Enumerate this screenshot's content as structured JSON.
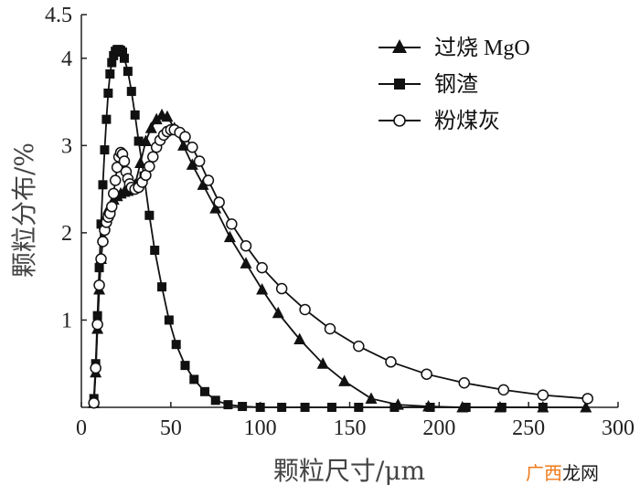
{
  "chart_data": {
    "type": "line",
    "title": "",
    "xlabel": "颗粒尺寸/μm",
    "ylabel": "颗粒分布/%",
    "xlim": [
      0,
      300
    ],
    "ylim": [
      0,
      4.5
    ],
    "xticks": [
      "0",
      "50",
      "100",
      "150",
      "200",
      "250",
      "300"
    ],
    "yticks": [
      "1",
      "2",
      "3",
      "4",
      "4.5"
    ],
    "grid": false,
    "legend_position": "top-right",
    "series": [
      {
        "name": "过烧 MgO",
        "marker": "triangle",
        "color": "#111111",
        "x": [
          7,
          8,
          9,
          10,
          11,
          12,
          13,
          14,
          15,
          16,
          18,
          20,
          22,
          24,
          26,
          28,
          30,
          33,
          36,
          39,
          42,
          45,
          48,
          52,
          57,
          62,
          68,
          75,
          83,
          92,
          101,
          110,
          122,
          135,
          147,
          162,
          177,
          194,
          213,
          234,
          258,
          282
        ],
        "y": [
          0.05,
          0.4,
          0.9,
          1.35,
          1.7,
          1.95,
          2.1,
          2.2,
          2.27,
          2.3,
          2.38,
          2.42,
          2.45,
          2.47,
          2.48,
          2.5,
          2.55,
          2.8,
          3.05,
          3.2,
          3.3,
          3.35,
          3.33,
          3.2,
          3.0,
          2.78,
          2.55,
          2.28,
          1.95,
          1.65,
          1.35,
          1.08,
          0.78,
          0.5,
          0.3,
          0.1,
          0.03,
          0.01,
          0.0,
          0.0,
          0.0,
          0.0
        ]
      },
      {
        "name": "钢渣",
        "marker": "square",
        "color": "#111111",
        "x": [
          7,
          8,
          9,
          10,
          11,
          12,
          13,
          14,
          15,
          16,
          17,
          18,
          19,
          20,
          21,
          22,
          23,
          24,
          26,
          28,
          30,
          32,
          35,
          38,
          41,
          45,
          49,
          53,
          58,
          63,
          69,
          75,
          82,
          90,
          100,
          112,
          125,
          140,
          155,
          175,
          195,
          215,
          235,
          258
        ],
        "y": [
          0.1,
          0.5,
          1.05,
          1.6,
          2.1,
          2.55,
          2.95,
          3.3,
          3.6,
          3.82,
          3.95,
          4.03,
          4.08,
          4.1,
          4.1,
          4.09,
          4.07,
          4.0,
          3.85,
          3.62,
          3.35,
          3.05,
          2.65,
          2.2,
          1.8,
          1.38,
          1.0,
          0.72,
          0.48,
          0.32,
          0.18,
          0.08,
          0.03,
          0.01,
          0.0,
          0.0,
          0.0,
          0.0,
          0.0,
          0.0,
          0.0,
          0.0,
          0.0,
          0.0
        ]
      },
      {
        "name": "粉煤灰",
        "marker": "circle",
        "color": "#111111",
        "x": [
          7,
          8,
          9,
          10,
          11,
          12,
          13,
          14,
          15,
          16,
          17,
          18,
          19,
          20,
          21,
          22,
          23,
          24,
          25,
          26,
          27,
          28,
          30,
          32,
          34,
          36,
          38,
          40,
          42,
          44,
          46,
          48,
          50,
          52,
          55,
          58,
          62,
          66,
          71,
          77,
          84,
          92,
          101,
          112,
          125,
          139,
          155,
          173,
          193,
          214,
          236,
          258,
          283
        ],
        "y": [
          0.05,
          0.45,
          0.95,
          1.4,
          1.7,
          1.9,
          2.03,
          2.12,
          2.18,
          2.22,
          2.3,
          2.45,
          2.6,
          2.75,
          2.87,
          2.92,
          2.9,
          2.82,
          2.7,
          2.62,
          2.56,
          2.52,
          2.5,
          2.52,
          2.58,
          2.66,
          2.76,
          2.87,
          2.98,
          3.06,
          3.12,
          3.16,
          3.18,
          3.18,
          3.15,
          3.1,
          2.98,
          2.82,
          2.6,
          2.35,
          2.1,
          1.85,
          1.6,
          1.36,
          1.12,
          0.9,
          0.7,
          0.52,
          0.38,
          0.28,
          0.2,
          0.14,
          0.1
        ]
      }
    ]
  },
  "watermark": {
    "accent_text": "广西",
    "rest_text": "龙网"
  }
}
